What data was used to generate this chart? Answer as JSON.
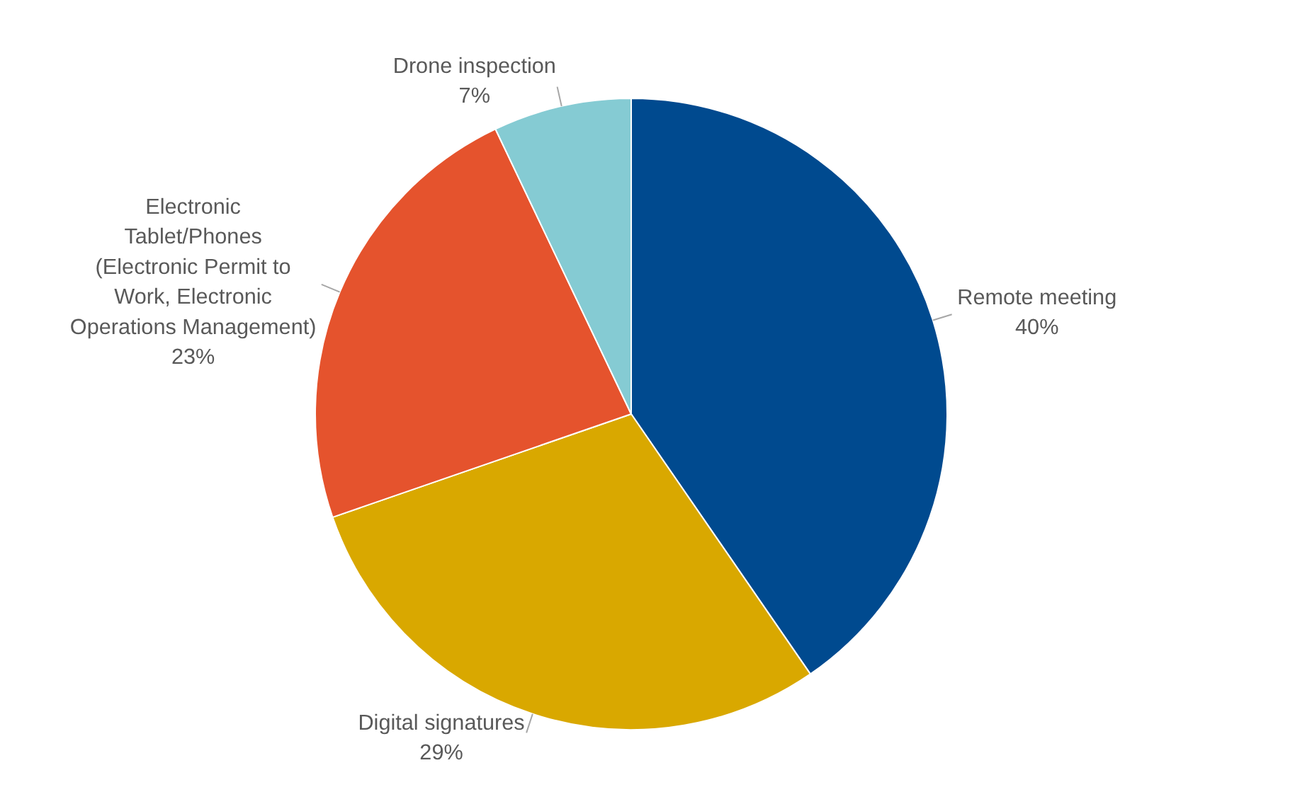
{
  "chart_data": {
    "type": "pie",
    "categories": [
      "Remote meeting",
      "Digital signatures",
      "Electronic Tablet/Phones (Electronic Permit to Work, Electronic Operations Management)",
      "Drone inspection"
    ],
    "values": [
      40,
      29,
      23,
      7
    ],
    "value_labels": [
      "40%",
      "29%",
      "23%",
      "7%"
    ],
    "colors": [
      "#004a8f",
      "#d9a800",
      "#e5532d",
      "#85cbd3"
    ]
  }
}
